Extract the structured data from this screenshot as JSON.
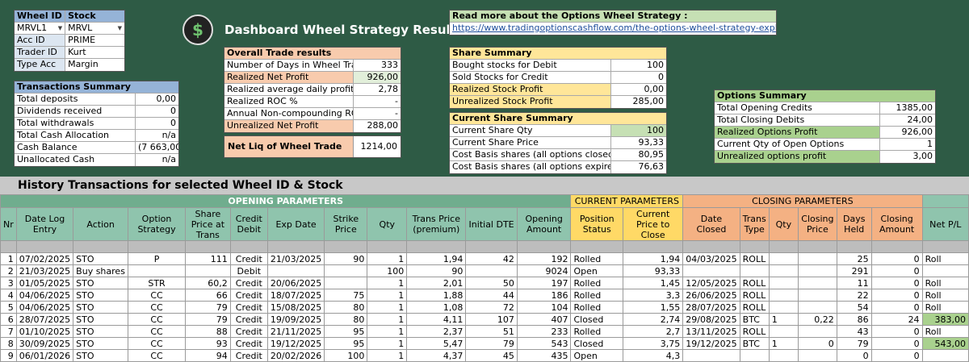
{
  "selector": {
    "wheel_id_label": "Wheel ID",
    "stock_label": "Stock",
    "wheel_id_value": "MRVL1",
    "stock_value": "MRVL",
    "rows": [
      {
        "label": "Acc ID",
        "value": "PRIME"
      },
      {
        "label": "Trader ID",
        "value": "Kurt"
      },
      {
        "label": "Type Acc",
        "value": "Margin"
      }
    ]
  },
  "transactions_summary": {
    "title": "Transactions Summary",
    "rows": [
      {
        "label": "Total deposits",
        "value": "0,00"
      },
      {
        "label": "Dividends received",
        "value": "0"
      },
      {
        "label": "Total withdrawals",
        "value": "0"
      },
      {
        "label": "Total Cash Allocation",
        "value": "n/a"
      },
      {
        "label": "Cash Balance",
        "value": "(7 663,00)"
      },
      {
        "label": "Unallocated Cash",
        "value": "n/a"
      }
    ]
  },
  "header": {
    "title": "Dashboard Wheel Strategy Results",
    "logo_icon": "dollar-cycle-icon"
  },
  "overall": {
    "title": "Overall Trade results",
    "rows": [
      {
        "label": "Number of Days in Wheel Trade",
        "value": "333"
      },
      {
        "label": "Realized Net Profit",
        "value": "926,00"
      },
      {
        "label": "Realized average daily profit",
        "value": "2,78"
      },
      {
        "label": "Realized ROC %",
        "value": "-"
      },
      {
        "label": "Annual Non-compounding ROC %",
        "value": "-"
      },
      {
        "label": "Unrealized Net Profit",
        "value": "288,00"
      }
    ],
    "net_liq_label": "Net Liq of Wheel Trade",
    "net_liq_value": "1214,00"
  },
  "read_more": {
    "label": "Read more about the Options Wheel Strategy :",
    "url": "https://www.tradingoptionscashflow.com/the-options-wheel-strategy-explained/"
  },
  "share_summary": {
    "title": "Share Summary",
    "rows": [
      {
        "label": "Bought stocks for Debit",
        "value": "100"
      },
      {
        "label": "Sold Stocks for Credit",
        "value": "0"
      },
      {
        "label": "Realized Stock Profit",
        "value": "0,00"
      },
      {
        "label": "Unrealized Stock Profit",
        "value": "285,00"
      }
    ]
  },
  "current_share": {
    "title": "Current Share Summary",
    "rows": [
      {
        "label": "Current Share Qty",
        "value": "100"
      },
      {
        "label": "Current Share Price",
        "value": "93,33"
      },
      {
        "label": "Cost Basis shares (all options closed now)",
        "value": "80,95"
      },
      {
        "label": "Cost Basis shares (all options expired)",
        "value": "76,63"
      }
    ]
  },
  "options_summary": {
    "title": "Options Summary",
    "rows": [
      {
        "label": "Total Opening Credits",
        "value": "1385,00"
      },
      {
        "label": "Total Closing Debits",
        "value": "24,00"
      },
      {
        "label": "Realized Options Profit",
        "value": "926,00"
      },
      {
        "label": "Current Qty of Open Options",
        "value": "1"
      },
      {
        "label": "Unrealized options profit",
        "value": "3,00"
      }
    ]
  },
  "history": {
    "title": "History Transactions for selected Wheel ID & Stock",
    "group_opening": "OPENING PARAMETERS",
    "group_current": "CURRENT PARAMETERS",
    "group_closing": "CLOSING PARAMETERS",
    "columns": [
      "Nr",
      "Date Log Entry",
      "Action",
      "Option Strategy",
      "Share Price at Trans",
      "Credit Debit",
      "Exp Date",
      "Strike Price",
      "Qty",
      "Trans Price (premium)",
      "Initial DTE",
      "Opening Amount",
      "Position Status",
      "Current Price to Close",
      "Date Closed",
      "Trans Type",
      "Qty",
      "Closing Price",
      "Days Held",
      "Closing Amount",
      "Net P/L"
    ],
    "rows": [
      [
        "1",
        "07/02/2025",
        "STO",
        "P",
        "111",
        "Credit",
        "21/03/2025",
        "90",
        "1",
        "1,94",
        "42",
        "192",
        "Rolled",
        "1,94",
        "04/03/2025",
        "ROLL",
        "",
        "",
        "25",
        "0",
        "Roll"
      ],
      [
        "2",
        "21/03/2025",
        "Buy shares",
        "",
        "",
        "Debit",
        "",
        "",
        "100",
        "90",
        "",
        "9024",
        "Open",
        "93,33",
        "",
        "",
        "",
        "",
        "291",
        "0",
        ""
      ],
      [
        "3",
        "01/05/2025",
        "STO",
        "STR",
        "60,2",
        "Credit",
        "20/06/2025",
        "",
        "1",
        "2,01",
        "50",
        "197",
        "Rolled",
        "1,45",
        "12/05/2025",
        "ROLL",
        "",
        "",
        "11",
        "0",
        "Roll"
      ],
      [
        "4",
        "04/06/2025",
        "STO",
        "CC",
        "66",
        "Credit",
        "18/07/2025",
        "75",
        "1",
        "1,88",
        "44",
        "186",
        "Rolled",
        "3,3",
        "26/06/2025",
        "ROLL",
        "",
        "",
        "22",
        "0",
        "Roll"
      ],
      [
        "5",
        "04/06/2025",
        "STO",
        "CC",
        "79",
        "Credit",
        "15/08/2025",
        "80",
        "1",
        "1,08",
        "72",
        "104",
        "Rolled",
        "1,55",
        "28/07/2025",
        "ROLL",
        "",
        "",
        "54",
        "0",
        "Roll"
      ],
      [
        "6",
        "28/07/2025",
        "STO",
        "CC",
        "79",
        "Credit",
        "19/09/2025",
        "80",
        "1",
        "4,11",
        "107",
        "407",
        "Closed",
        "2,74",
        "29/08/2025",
        "BTC",
        "1",
        "0,22",
        "86",
        "24",
        "383,00"
      ],
      [
        "7",
        "01/10/2025",
        "STO",
        "CC",
        "88",
        "Credit",
        "21/11/2025",
        "95",
        "1",
        "2,37",
        "51",
        "233",
        "Rolled",
        "2,7",
        "13/11/2025",
        "ROLL",
        "",
        "",
        "43",
        "0",
        "Roll"
      ],
      [
        "8",
        "30/09/2025",
        "STO",
        "CC",
        "93",
        "Credit",
        "19/12/2025",
        "95",
        "1",
        "5,47",
        "79",
        "543",
        "Closed",
        "3,75",
        "19/12/2025",
        "BTC",
        "1",
        "0",
        "79",
        "0",
        "543,00"
      ],
      [
        "9",
        "06/01/2026",
        "STO",
        "CC",
        "94",
        "Credit",
        "20/02/2026",
        "100",
        "1",
        "4,37",
        "45",
        "435",
        "Open",
        "4,3",
        "",
        "",
        "",
        "",
        "0",
        "0",
        ""
      ]
    ]
  }
}
